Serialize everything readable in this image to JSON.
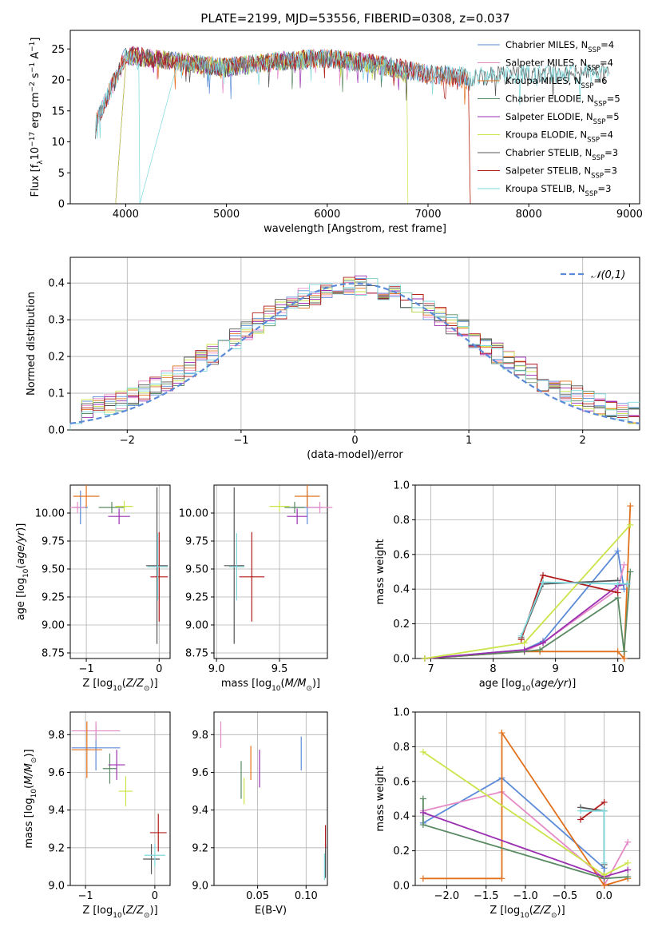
{
  "title": "PLATE=2199, MJD=53556, FIBERID=0308, z=0.037",
  "colors": {
    "Chabrier MILES": "#5b8bd8",
    "Salpeter MILES": "#e58ac6",
    "Kroupa MILES": "#e2701b",
    "Chabrier ELODIE": "#5a8a62",
    "Salpeter ELODIE": "#9a2fb0",
    "Kroupa ELODIE": "#cce44a",
    "Chabrier STELIB": "#555555",
    "Salpeter STELIB": "#b01c1c",
    "Kroupa STELIB": "#7ed8dc"
  },
  "chart_data": [
    {
      "id": "spectrum",
      "type": "line",
      "title": "PLATE=2199, MJD=53556, FIBERID=0308, z=0.037",
      "xlabel": "wavelength [Angstrom, rest frame]",
      "ylabel": "Flux [f_λ 10^-17 erg cm^-2 s^-1 A^-1]",
      "xlim": [
        3450,
        9100
      ],
      "ylim": [
        0,
        28
      ],
      "xticks": [
        4000,
        5000,
        6000,
        7000,
        8000,
        9000
      ],
      "yticks": [
        0,
        5,
        10,
        15,
        20,
        25
      ],
      "legend_position": "top-right",
      "series": [
        {
          "name": "Chabrier MILES, N_SSP=4",
          "model": "Chabrier MILES",
          "x": [
            3700,
            4000,
            4500,
            5000,
            5500,
            6000,
            6500,
            7000,
            7400
          ],
          "y": [
            13,
            24,
            23,
            22,
            23,
            23.5,
            22.5,
            21,
            20
          ]
        },
        {
          "name": "Salpeter MILES, N_SSP=4",
          "model": "Salpeter MILES",
          "x": [
            3700,
            4000,
            4500,
            5000,
            5500,
            6000,
            6500,
            7000,
            7400
          ],
          "y": [
            13,
            24,
            23,
            22,
            23,
            23.5,
            22.5,
            21,
            20
          ]
        },
        {
          "name": "Kroupa MILES, N_SSP=6",
          "model": "Kroupa MILES",
          "x": [
            3700,
            4000,
            4500,
            5000,
            5500,
            6000,
            6500,
            7000,
            7400,
            7420
          ],
          "y": [
            13,
            24,
            23,
            22,
            23,
            23.5,
            22.5,
            21,
            20,
            0
          ]
        },
        {
          "name": "Chabrier ELODIE, N_SSP=5",
          "model": "Chabrier ELODIE",
          "x": [
            3900,
            4000,
            4500,
            5000,
            5500,
            6000,
            6500,
            6800
          ],
          "y": [
            0,
            24,
            23,
            22,
            23,
            23.5,
            22.5,
            21
          ]
        },
        {
          "name": "Salpeter ELODIE, N_SSP=5",
          "model": "Salpeter ELODIE",
          "x": [
            3900,
            4000,
            4500,
            5000,
            5500,
            6000,
            6500,
            6800
          ],
          "y": [
            0,
            24,
            23,
            22,
            23,
            23.5,
            22.5,
            21
          ]
        },
        {
          "name": "Kroupa ELODIE, N_SSP=4",
          "model": "Kroupa ELODIE",
          "x": [
            3900,
            4000,
            4500,
            5000,
            5500,
            6000,
            6500,
            6790,
            6800
          ],
          "y": [
            0,
            24,
            23,
            22,
            23,
            23.5,
            22.5,
            21,
            0
          ]
        },
        {
          "name": "Chabrier STELIB, N_SSP=3",
          "model": "Chabrier STELIB",
          "x": [
            3700,
            4000,
            4500,
            5000,
            5500,
            6000,
            6500,
            7000,
            7500,
            8000,
            8500,
            8800
          ],
          "y": [
            13,
            24,
            23,
            22,
            23,
            23.5,
            22.5,
            21,
            20.5,
            21,
            21,
            21
          ]
        },
        {
          "name": "Salpeter STELIB, N_SSP=3",
          "model": "Salpeter STELIB",
          "x": [
            3700,
            4000,
            4500,
            5000,
            5500,
            6000,
            6500,
            7000,
            7400,
            7420
          ],
          "y": [
            13,
            24,
            23,
            22,
            23,
            23.5,
            22.5,
            21,
            20,
            0
          ]
        },
        {
          "name": "Kroupa STELIB, N_SSP=3",
          "model": "Kroupa STELIB",
          "x": [
            3700,
            4000,
            4130,
            4140,
            4500,
            5000,
            5500,
            6000,
            6500,
            7000,
            7500,
            8000,
            8500,
            8800
          ],
          "y": [
            13,
            24,
            23,
            0,
            23,
            22,
            23,
            23.5,
            22.5,
            21,
            20.5,
            21,
            21,
            21
          ]
        }
      ]
    },
    {
      "id": "residuals",
      "type": "histogram",
      "xlabel": "(data-model)/error",
      "ylabel": "Normed distribution",
      "xlim": [
        -2.5,
        2.5
      ],
      "ylim": [
        0,
        0.47
      ],
      "xticks": [
        -2,
        -1,
        0,
        1,
        2
      ],
      "yticks": [
        0.0,
        0.1,
        0.2,
        0.3,
        0.4
      ],
      "reference_curve": {
        "name": "N(0,1)",
        "label": "𝒩(0,1)",
        "mean": 0,
        "sigma": 1,
        "style": "dashed",
        "color": "#5b8bd8"
      },
      "legend_position": "top-right",
      "bin_width": 0.1,
      "bin_range": [
        -2.5,
        2.5
      ],
      "approx_bin_values": "each of the 9 model histograms approximates a normal profile, peak about 0.33-0.45 around x≈0"
    },
    {
      "id": "age_vs_Z",
      "type": "errorbar",
      "xlabel": "Z [log10(Z/Z⊙)]",
      "ylabel": "age [log10(age/yr)]",
      "xlim": [
        -1.22,
        0.15
      ],
      "ylim": [
        8.7,
        10.25
      ],
      "xticks": [
        -1,
        0
      ],
      "yticks": [
        8.75,
        9.0,
        9.25,
        9.5,
        9.75,
        10.0
      ],
      "points": [
        {
          "model": "Chabrier MILES",
          "x": -1.08,
          "xerr": 0.1,
          "y": 10.05,
          "yerr": 0.15
        },
        {
          "model": "Salpeter MILES",
          "x": -1.12,
          "xerr": 0.1,
          "y": 10.05,
          "yerr": 0.05
        },
        {
          "model": "Kroupa MILES",
          "x": -1.0,
          "xerr": 0.18,
          "y": 10.15,
          "yerr": 0.1
        },
        {
          "model": "Chabrier ELODIE",
          "x": -0.65,
          "xerr": 0.18,
          "y": 10.05,
          "yerr": 0.05
        },
        {
          "model": "Salpeter ELODIE",
          "x": -0.55,
          "xerr": 0.15,
          "y": 9.97,
          "yerr": 0.07
        },
        {
          "model": "Kroupa ELODIE",
          "x": -0.48,
          "xerr": 0.12,
          "y": 10.06,
          "yerr": 0.05
        },
        {
          "model": "Chabrier STELIB",
          "x": -0.03,
          "xerr": 0.15,
          "y": 9.53,
          "yerr": 0.7
        },
        {
          "model": "Salpeter STELIB",
          "x": 0.0,
          "xerr": 0.12,
          "y": 9.43,
          "yerr": 0.4
        },
        {
          "model": "Kroupa STELIB",
          "x": -0.02,
          "xerr": 0.14,
          "y": 9.52,
          "yerr": 0.3
        }
      ]
    },
    {
      "id": "age_vs_mass",
      "type": "errorbar",
      "xlabel": "mass [log10(M/M⊙)]",
      "ylabel": "",
      "xlim": [
        8.98,
        9.88
      ],
      "ylim": [
        8.7,
        10.25
      ],
      "xticks": [
        9.0,
        9.5
      ],
      "yticks": [
        8.75,
        9.0,
        9.25,
        9.5,
        9.75,
        10.0
      ],
      "points": [
        {
          "model": "Chabrier MILES",
          "x": 9.72,
          "xerr": 0.12,
          "y": 10.05,
          "yerr": 0.15
        },
        {
          "model": "Salpeter MILES",
          "x": 9.82,
          "xerr": 0.1,
          "y": 10.05,
          "yerr": 0.05
        },
        {
          "model": "Kroupa MILES",
          "x": 9.72,
          "xerr": 0.1,
          "y": 10.15,
          "yerr": 0.1
        },
        {
          "model": "Chabrier ELODIE",
          "x": 9.62,
          "xerr": 0.08,
          "y": 10.05,
          "yerr": 0.05
        },
        {
          "model": "Salpeter ELODIE",
          "x": 9.64,
          "xerr": 0.08,
          "y": 9.97,
          "yerr": 0.07
        },
        {
          "model": "Kroupa ELODIE",
          "x": 9.5,
          "xerr": 0.08,
          "y": 10.06,
          "yerr": 0.05
        },
        {
          "model": "Chabrier STELIB",
          "x": 9.14,
          "xerr": 0.08,
          "y": 9.53,
          "yerr": 0.7
        },
        {
          "model": "Salpeter STELIB",
          "x": 9.28,
          "xerr": 0.1,
          "y": 9.43,
          "yerr": 0.4
        },
        {
          "model": "Kroupa STELIB",
          "x": 9.16,
          "xerr": 0.06,
          "y": 9.52,
          "yerr": 0.3
        }
      ]
    },
    {
      "id": "weight_vs_age",
      "type": "line",
      "xlabel": "age [log10(age/yr)]",
      "ylabel": "mass weight",
      "xlim": [
        6.75,
        10.35
      ],
      "ylim": [
        0,
        1
      ],
      "xticks": [
        7,
        8,
        9,
        10
      ],
      "yticks": [
        0.0,
        0.2,
        0.4,
        0.6,
        0.8,
        1.0
      ],
      "series": [
        {
          "model": "Chabrier MILES",
          "x": [
            6.9,
            8.5,
            8.8,
            10.0,
            10.1
          ],
          "y": [
            0.0,
            0.05,
            0.1,
            0.62,
            0.4
          ]
        },
        {
          "model": "Salpeter MILES",
          "x": [
            6.9,
            8.5,
            8.8,
            10.0,
            10.1
          ],
          "y": [
            0.0,
            0.04,
            0.09,
            0.4,
            0.54
          ]
        },
        {
          "model": "Kroupa MILES",
          "x": [
            6.9,
            8.5,
            8.75,
            10.0,
            10.1,
            10.2
          ],
          "y": [
            0.0,
            0.04,
            0.04,
            0.04,
            0.0,
            0.88
          ]
        },
        {
          "model": "Chabrier ELODIE",
          "x": [
            6.9,
            8.5,
            8.75,
            10.0,
            10.1,
            10.2
          ],
          "y": [
            0.0,
            0.04,
            0.05,
            0.35,
            0.04,
            0.5
          ]
        },
        {
          "model": "Salpeter ELODIE",
          "x": [
            6.9,
            8.5,
            8.8,
            10.0,
            10.15
          ],
          "y": [
            0.0,
            0.05,
            0.09,
            0.42,
            0.43
          ]
        },
        {
          "model": "Kroupa ELODIE",
          "x": [
            6.9,
            8.5,
            10.2
          ],
          "y": [
            0.0,
            0.09,
            0.77
          ]
        },
        {
          "model": "Chabrier STELIB",
          "x": [
            8.45,
            8.8,
            10.0
          ],
          "y": [
            0.12,
            0.43,
            0.45
          ]
        },
        {
          "model": "Salpeter STELIB",
          "x": [
            8.45,
            8.8,
            10.0
          ],
          "y": [
            0.11,
            0.48,
            0.38
          ]
        },
        {
          "model": "Kroupa STELIB",
          "x": [
            8.45,
            8.8,
            10.0,
            10.15
          ],
          "y": [
            0.13,
            0.44,
            0.43,
            0.43
          ]
        }
      ]
    },
    {
      "id": "mass_vs_Z",
      "type": "errorbar",
      "xlabel": "Z [log10(Z/Z⊙)]",
      "ylabel": "mass [log10(M/M⊙)]",
      "xlim": [
        -1.22,
        0.22
      ],
      "ylim": [
        9.0,
        9.92
      ],
      "xticks": [
        -1,
        0
      ],
      "yticks": [
        9.0,
        9.2,
        9.4,
        9.6,
        9.8
      ],
      "points": [
        {
          "model": "Chabrier MILES",
          "x": -0.85,
          "xerr": 0.35,
          "y": 9.73,
          "yerr": 0.12
        },
        {
          "model": "Salpeter MILES",
          "x": -0.85,
          "xerr": 0.35,
          "y": 9.82,
          "yerr": 0.05
        },
        {
          "model": "Kroupa MILES",
          "x": -0.98,
          "xerr": 0.22,
          "y": 9.72,
          "yerr": 0.15
        },
        {
          "model": "Chabrier ELODIE",
          "x": -0.65,
          "xerr": 0.1,
          "y": 9.62,
          "yerr": 0.08
        },
        {
          "model": "Salpeter ELODIE",
          "x": -0.55,
          "xerr": 0.12,
          "y": 9.64,
          "yerr": 0.08
        },
        {
          "model": "Kroupa ELODIE",
          "x": -0.42,
          "xerr": 0.1,
          "y": 9.5,
          "yerr": 0.08
        },
        {
          "model": "Chabrier STELIB",
          "x": -0.05,
          "xerr": 0.12,
          "y": 9.14,
          "yerr": 0.08
        },
        {
          "model": "Salpeter STELIB",
          "x": 0.05,
          "xerr": 0.12,
          "y": 9.28,
          "yerr": 0.1
        },
        {
          "model": "Kroupa STELIB",
          "x": 0.0,
          "xerr": 0.15,
          "y": 9.16,
          "yerr": 0.06
        }
      ]
    },
    {
      "id": "mass_vs_EBV",
      "type": "errorbar",
      "xlabel": "E(B-V)",
      "ylabel": "",
      "xlim": [
        0.005,
        0.122
      ],
      "ylim": [
        9.0,
        9.92
      ],
      "xticks": [
        0.05,
        0.1
      ],
      "yticks": [
        9.0,
        9.2,
        9.4,
        9.6,
        9.8
      ],
      "points": [
        {
          "model": "Chabrier MILES",
          "x": 0.095,
          "y": 9.7,
          "yerr": 0.09
        },
        {
          "model": "Salpeter MILES",
          "x": 0.012,
          "y": 9.8,
          "yerr": 0.07
        },
        {
          "model": "Kroupa MILES",
          "x": 0.043,
          "y": 9.65,
          "yerr": 0.09
        },
        {
          "model": "Chabrier ELODIE",
          "x": 0.033,
          "y": 9.56,
          "yerr": 0.1
        },
        {
          "model": "Salpeter ELODIE",
          "x": 0.052,
          "y": 9.62,
          "yerr": 0.1
        },
        {
          "model": "Kroupa ELODIE",
          "x": 0.036,
          "y": 9.5,
          "yerr": 0.07
        },
        {
          "model": "Chabrier STELIB",
          "x": 0.12,
          "y": 9.13,
          "yerr": 0.09
        },
        {
          "model": "Salpeter STELIB",
          "x": 0.12,
          "y": 9.26,
          "yerr": 0.06
        },
        {
          "model": "Kroupa STELIB",
          "x": 0.119,
          "y": 9.1,
          "yerr": 0.07
        }
      ]
    },
    {
      "id": "weight_vs_Z",
      "type": "line",
      "xlabel": "Z [log10(Z/Z⊙)]",
      "ylabel": "mass weight",
      "xlim": [
        -2.4,
        0.45
      ],
      "ylim": [
        0,
        1
      ],
      "xticks": [
        -2.0,
        -1.5,
        -1.0,
        -0.5,
        0.0
      ],
      "yticks": [
        0.0,
        0.2,
        0.4,
        0.6,
        0.8,
        1.0
      ],
      "series": [
        {
          "model": "Chabrier MILES",
          "x": [
            -2.3,
            -1.3,
            0.0,
            0.0
          ],
          "y": [
            0.36,
            0.62,
            0.1,
            0.0
          ]
        },
        {
          "model": "Salpeter MILES",
          "x": [
            -2.3,
            -1.3,
            0.0,
            0.0,
            0.3
          ],
          "y": [
            0.43,
            0.54,
            0.04,
            0.0,
            0.25
          ]
        },
        {
          "model": "Kroupa MILES",
          "x": [
            -2.3,
            -1.3,
            -1.3,
            0.0,
            0.3
          ],
          "y": [
            0.04,
            0.04,
            0.88,
            0.0,
            0.04
          ]
        },
        {
          "model": "Chabrier ELODIE",
          "x": [
            -2.3,
            -2.3,
            0.0,
            0.3
          ],
          "y": [
            0.5,
            0.35,
            0.04,
            0.05
          ]
        },
        {
          "model": "Salpeter ELODIE",
          "x": [
            -2.3,
            0.0,
            0.3
          ],
          "y": [
            0.42,
            0.05,
            0.09
          ]
        },
        {
          "model": "Kroupa ELODIE",
          "x": [
            -2.3,
            0.0,
            0.3
          ],
          "y": [
            0.77,
            0.06,
            0.13
          ]
        },
        {
          "model": "Chabrier STELIB",
          "x": [
            -0.3,
            0.0,
            0.0
          ],
          "y": [
            0.45,
            0.43,
            0.12
          ]
        },
        {
          "model": "Salpeter STELIB",
          "x": [
            -0.3,
            0.0
          ],
          "y": [
            0.38,
            0.48
          ]
        },
        {
          "model": "Kroupa STELIB",
          "x": [
            -0.3,
            0.0,
            0.0
          ],
          "y": [
            0.43,
            0.43,
            0.13
          ]
        }
      ]
    }
  ]
}
